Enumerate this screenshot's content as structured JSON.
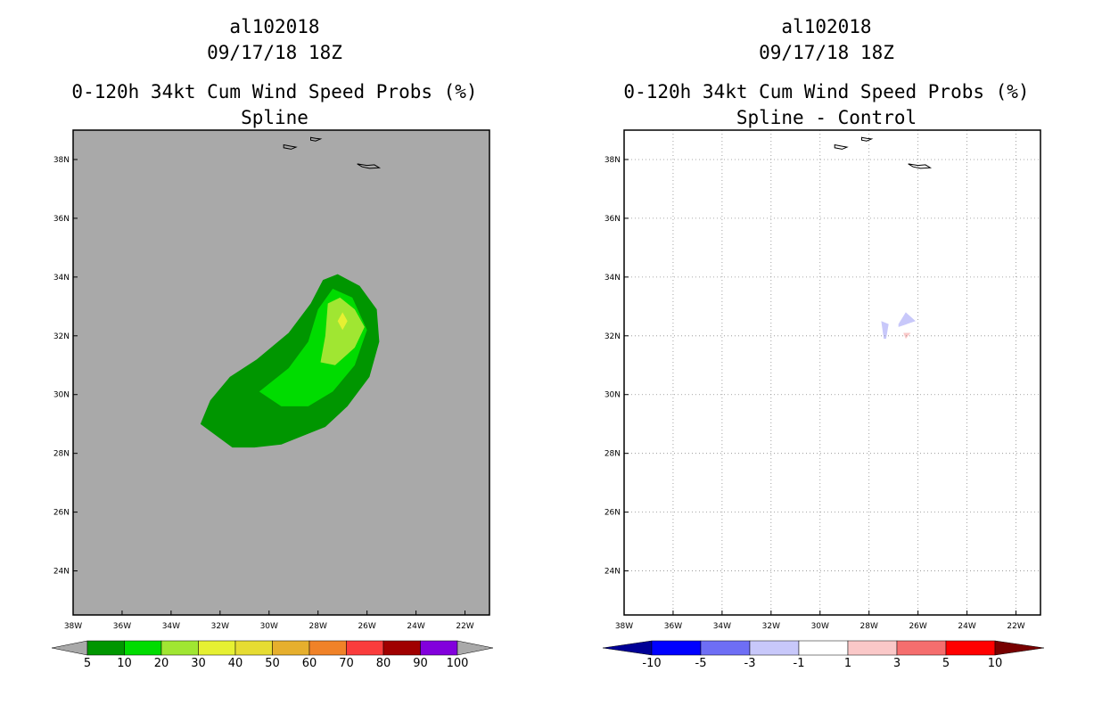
{
  "chart_data": [
    {
      "type": "contour-map",
      "title": [
        "al102018",
        "09/17/18 18Z",
        "0-120h 34kt Cum Wind Speed Probs (%)",
        "Spline"
      ],
      "x_ticks": [
        "38W",
        "36W",
        "34W",
        "32W",
        "30W",
        "28W",
        "26W",
        "24W",
        "22W"
      ],
      "y_ticks": [
        "24N",
        "26N",
        "28N",
        "30N",
        "32N",
        "34N",
        "36N",
        "38N"
      ],
      "xlim_lon": [
        -38,
        -21
      ],
      "ylim_lat": [
        22.5,
        39
      ],
      "background": "#a9a9a9",
      "grid": false,
      "colorbar": {
        "labels": [
          "5",
          "10",
          "20",
          "30",
          "40",
          "50",
          "60",
          "70",
          "80",
          "90",
          "100"
        ],
        "colors": [
          "#009600",
          "#00dc00",
          "#a0e632",
          "#e6f032",
          "#e6dc32",
          "#e6af2d",
          "#f08228",
          "#fa3c3c",
          "#a00000",
          "#8200dc"
        ],
        "under": "#a9a9a9",
        "over": "#a9a9a9"
      },
      "contours": [
        {
          "level": "5-10",
          "color": "#009600",
          "ring": [
            [
              -31.5,
              28.2
            ],
            [
              -32.8,
              29
            ],
            [
              -32.4,
              29.8
            ],
            [
              -31.6,
              30.6
            ],
            [
              -30.5,
              31.2
            ],
            [
              -29.2,
              32.1
            ],
            [
              -28.3,
              33.1
            ],
            [
              -27.8,
              33.9
            ],
            [
              -27.2,
              34.1
            ],
            [
              -26.3,
              33.7
            ],
            [
              -25.6,
              32.9
            ],
            [
              -25.5,
              31.8
            ],
            [
              -25.9,
              30.6
            ],
            [
              -26.8,
              29.6
            ],
            [
              -27.7,
              28.9
            ],
            [
              -28.6,
              28.6
            ],
            [
              -29.5,
              28.3
            ],
            [
              -30.6,
              28.2
            ]
          ]
        },
        {
          "level": "10-20",
          "color": "#00dc00",
          "ring": [
            [
              -30.4,
              30.1
            ],
            [
              -29.2,
              30.9
            ],
            [
              -28.4,
              31.8
            ],
            [
              -28,
              32.9
            ],
            [
              -27.4,
              33.6
            ],
            [
              -26.6,
              33.3
            ],
            [
              -26,
              32.2
            ],
            [
              -26.5,
              31
            ],
            [
              -27.4,
              30.1
            ],
            [
              -28.4,
              29.6
            ],
            [
              -29.5,
              29.6
            ]
          ]
        },
        {
          "level": "20-30",
          "color": "#a0e632",
          "ring": [
            [
              -27.9,
              31.1
            ],
            [
              -27.7,
              32
            ],
            [
              -27.6,
              33.1
            ],
            [
              -27.1,
              33.3
            ],
            [
              -26.5,
              32.9
            ],
            [
              -26.1,
              32.3
            ],
            [
              -26.5,
              31.6
            ],
            [
              -27.3,
              31
            ]
          ]
        },
        {
          "level": "30-40",
          "color": "#e6f032",
          "ring": [
            [
              -27,
              32.8
            ],
            [
              -26.8,
              32.5
            ],
            [
              -27,
              32.2
            ],
            [
              -27.2,
              32.5
            ]
          ]
        }
      ]
    },
    {
      "type": "contour-map",
      "title": [
        "al102018",
        "09/17/18 18Z",
        "0-120h 34kt Cum Wind Speed Probs (%)",
        "Spline - Control"
      ],
      "x_ticks": [
        "38W",
        "36W",
        "34W",
        "32W",
        "30W",
        "28W",
        "26W",
        "24W",
        "22W"
      ],
      "y_ticks": [
        "24N",
        "26N",
        "28N",
        "30N",
        "32N",
        "34N",
        "36N",
        "38N"
      ],
      "xlim_lon": [
        -38,
        -21
      ],
      "ylim_lat": [
        22.5,
        39
      ],
      "background": "#ffffff",
      "grid": true,
      "colorbar": {
        "labels": [
          "-10",
          "-5",
          "-3",
          "-1",
          "1",
          "3",
          "5",
          "10"
        ],
        "colors": [
          "#0000ff",
          "#6e6ef5",
          "#c8c8fa",
          "#ffffff",
          "#fac8c8",
          "#f56e6e",
          "#ff0000"
        ],
        "under": "#000096",
        "over": "#780000"
      },
      "contours": [
        {
          "level": "-3 to -1",
          "color": "#c8c8fa",
          "ring": [
            [
              -27.5,
              32.5
            ],
            [
              -27.2,
              32.4
            ],
            [
              -27.3,
              31.9
            ],
            [
              -27.4,
              31.9
            ]
          ]
        },
        {
          "level": "-3 to -1",
          "color": "#c8c8fa",
          "ring": [
            [
              -26.8,
              32.4
            ],
            [
              -26.5,
              32.8
            ],
            [
              -26.1,
              32.5
            ],
            [
              -26.8,
              32.3
            ]
          ]
        },
        {
          "level": "1 to 3",
          "color": "#fac8c8",
          "ring": [
            [
              -26.6,
              32.1
            ],
            [
              -26.3,
              32.1
            ],
            [
              -26.5,
              31.9
            ]
          ]
        }
      ]
    }
  ],
  "islands_lonlat": [
    [
      [
        -29.4,
        38.5
      ],
      [
        -29.1,
        38.45
      ],
      [
        -28.9,
        38.42
      ],
      [
        -29.1,
        38.35
      ],
      [
        -29.4,
        38.4
      ]
    ],
    [
      [
        -28.3,
        38.75
      ],
      [
        -28.1,
        38.72
      ],
      [
        -27.9,
        38.7
      ],
      [
        -28.1,
        38.63
      ],
      [
        -28.3,
        38.66
      ]
    ],
    [
      [
        -26.4,
        37.85
      ],
      [
        -26.0,
        37.8
      ],
      [
        -25.7,
        37.82
      ],
      [
        -25.5,
        37.72
      ],
      [
        -25.9,
        37.7
      ],
      [
        -26.2,
        37.75
      ]
    ]
  ]
}
